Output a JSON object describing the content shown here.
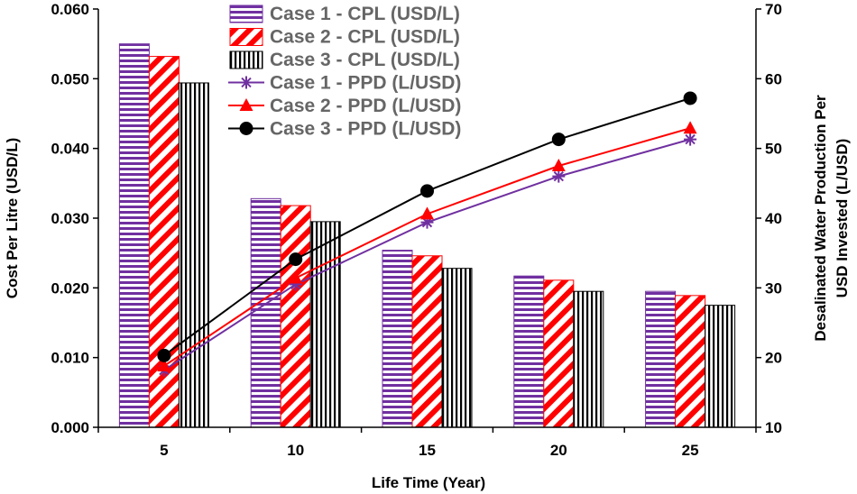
{
  "chart_data": {
    "type": "bar",
    "categories": [
      "5",
      "10",
      "15",
      "20",
      "25"
    ],
    "xlabel": "Life Time (Year)",
    "ylabel_left": "Cost Per Litre (USD/L)",
    "ylabel_right_line1": "Desalinated Water Production Per",
    "ylabel_right_line2": "USD Invested (L/USD)",
    "ylim_left": [
      0,
      0.06
    ],
    "ylim_right": [
      10,
      70
    ],
    "yticks_left": [
      "0.000",
      "0.010",
      "0.020",
      "0.030",
      "0.040",
      "0.050",
      "0.060"
    ],
    "yticks_right": [
      "10",
      "20",
      "30",
      "40",
      "50",
      "60",
      "70"
    ],
    "grid": false,
    "legend_placement": "top-center",
    "bar_series": [
      {
        "name": "Case 1 - CPL (USD/L)",
        "values": [
          0.055,
          0.0328,
          0.0254,
          0.0217,
          0.0195
        ],
        "color": "#7030A0",
        "pattern": "horizontal-stripes"
      },
      {
        "name": "Case 2 - CPL (USD/L)",
        "values": [
          0.0532,
          0.0318,
          0.0246,
          0.0211,
          0.0189
        ],
        "color": "#FF0000",
        "pattern": "diagonal-stripes"
      },
      {
        "name": "Case 3 - CPL (USD/L)",
        "values": [
          0.0494,
          0.0295,
          0.0228,
          0.0195,
          0.0175
        ],
        "color": "#000000",
        "pattern": "vertical-stripes"
      }
    ],
    "line_series": [
      {
        "name": "Case 1 - PPD (L/USD)",
        "values": [
          18.2,
          30.5,
          39.4,
          46.0,
          51.3
        ],
        "color": "#7030A0",
        "marker": "asterisk"
      },
      {
        "name": "Case 2 - PPD (L/USD)",
        "values": [
          18.8,
          31.4,
          40.6,
          47.5,
          52.9
        ],
        "color": "#FF0000",
        "marker": "triangle"
      },
      {
        "name": "Case 3 - PPD (L/USD)",
        "values": [
          20.3,
          34.1,
          43.9,
          51.3,
          57.2
        ],
        "color": "#000000",
        "marker": "circle"
      }
    ]
  }
}
